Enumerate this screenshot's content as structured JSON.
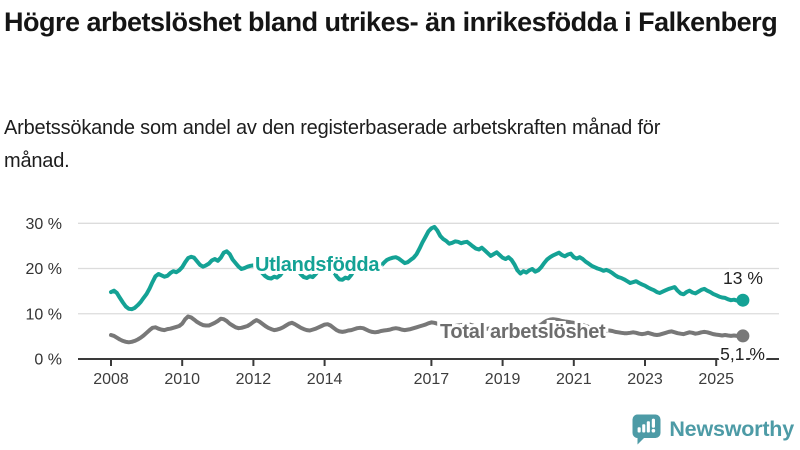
{
  "header": {
    "title": "Högre arbetslöshet bland utrikes- än inrikesfödda i Falkenberg",
    "subtitle": "Arbetssökande som andel av den registerbaserade arbetskraften månad för månad."
  },
  "chart_data": {
    "type": "line",
    "x_unit": "year (monthly data)",
    "x_start": 2008.0,
    "x_step": 0.0833333,
    "x_ticks": [
      2008,
      2010,
      2012,
      2014,
      2017,
      2019,
      2021,
      2023,
      2025
    ],
    "y_ticks": [
      0,
      10,
      20,
      30
    ],
    "y_tick_suffix": " %",
    "ylim": [
      0,
      30
    ],
    "xlim": [
      2007.9,
      2026.3
    ],
    "grid": true,
    "axis_color": "#3a3a3a",
    "grid_color": "#dcdcdc",
    "series": [
      {
        "name": "Utlandsfödda",
        "color": "#14a295",
        "end_label": "13 %",
        "end_value": 13.0,
        "values": [
          14.8,
          15.1,
          14.6,
          13.5,
          12.5,
          11.6,
          11.1,
          11.0,
          11.3,
          11.9,
          12.6,
          13.5,
          14.4,
          15.6,
          17.0,
          18.3,
          18.8,
          18.5,
          18.2,
          18.4,
          19.0,
          19.4,
          19.2,
          19.6,
          20.3,
          21.4,
          22.3,
          22.6,
          22.4,
          21.6,
          20.8,
          20.4,
          20.7,
          21.1,
          21.8,
          22.1,
          21.7,
          22.4,
          23.5,
          23.8,
          23.2,
          22.0,
          21.2,
          20.4,
          19.9,
          20.1,
          20.4,
          20.6,
          20.7,
          20.4,
          19.9,
          19.0,
          18.3,
          17.9,
          17.8,
          18.2,
          18.0,
          18.5,
          19.4,
          20.2,
          20.8,
          21.0,
          20.5,
          19.6,
          18.7,
          18.1,
          17.9,
          18.3,
          18.1,
          18.8,
          19.6,
          20.4,
          21.0,
          21.3,
          20.6,
          19.4,
          18.3,
          17.6,
          17.5,
          18.0,
          17.8,
          18.6,
          19.7,
          20.6,
          21.4,
          21.6,
          21.1,
          20.3,
          19.7,
          19.4,
          19.8,
          20.6,
          21.3,
          21.9,
          22.2,
          22.4,
          22.5,
          22.2,
          21.7,
          21.2,
          21.4,
          21.9,
          22.4,
          23.2,
          24.4,
          25.8,
          27.0,
          28.2,
          28.9,
          29.2,
          28.4,
          27.2,
          26.5,
          26.1,
          25.5,
          25.7,
          26.0,
          25.9,
          25.6,
          25.8,
          25.9,
          25.4,
          24.9,
          24.4,
          24.2,
          24.6,
          24.0,
          23.4,
          22.8,
          23.2,
          23.6,
          23.0,
          22.4,
          22.1,
          22.5,
          21.9,
          20.9,
          19.6,
          18.9,
          19.4,
          19.1,
          19.6,
          19.9,
          19.3,
          19.6,
          20.3,
          21.2,
          22.0,
          22.5,
          22.9,
          23.2,
          23.5,
          23.0,
          22.7,
          23.1,
          23.3,
          22.5,
          22.2,
          22.5,
          22.1,
          21.5,
          21.1,
          20.6,
          20.3,
          20.0,
          19.8,
          19.5,
          19.7,
          19.4,
          19.0,
          18.5,
          18.1,
          17.9,
          17.6,
          17.2,
          16.8,
          17.0,
          17.2,
          16.8,
          16.5,
          16.2,
          15.8,
          15.5,
          15.2,
          14.8,
          14.6,
          14.9,
          15.2,
          15.5,
          15.7,
          15.9,
          15.1,
          14.5,
          14.3,
          14.8,
          15.1,
          14.7,
          14.5,
          14.9,
          15.3,
          15.5,
          15.1,
          14.8,
          14.4,
          14.1,
          13.8,
          13.6,
          13.5,
          13.2,
          13.0,
          13.1,
          12.9,
          12.8,
          13.0
        ]
      },
      {
        "name": "Total arbetslöshet",
        "color": "#787878",
        "label_color": "#6d6d6d",
        "end_label": "5,1 %",
        "end_value": 5.1,
        "values": [
          5.3,
          5.1,
          4.7,
          4.3,
          4.0,
          3.8,
          3.7,
          3.8,
          4.0,
          4.3,
          4.7,
          5.2,
          5.8,
          6.4,
          6.9,
          7.0,
          6.7,
          6.5,
          6.4,
          6.6,
          6.7,
          6.9,
          7.1,
          7.3,
          7.8,
          8.8,
          9.4,
          9.2,
          8.7,
          8.2,
          7.8,
          7.5,
          7.4,
          7.4,
          7.7,
          8.0,
          8.4,
          8.9,
          8.8,
          8.4,
          7.8,
          7.4,
          7.0,
          6.8,
          6.9,
          7.1,
          7.3,
          7.7,
          8.2,
          8.6,
          8.3,
          7.8,
          7.3,
          6.9,
          6.6,
          6.4,
          6.5,
          6.7,
          7.0,
          7.4,
          7.8,
          8.0,
          7.7,
          7.3,
          6.9,
          6.6,
          6.4,
          6.3,
          6.5,
          6.7,
          7.0,
          7.3,
          7.6,
          7.7,
          7.4,
          6.9,
          6.4,
          6.1,
          6.0,
          6.1,
          6.3,
          6.4,
          6.6,
          6.8,
          6.9,
          6.8,
          6.5,
          6.2,
          6.0,
          5.9,
          6.0,
          6.2,
          6.3,
          6.4,
          6.5,
          6.7,
          6.8,
          6.7,
          6.5,
          6.4,
          6.5,
          6.6,
          6.8,
          7.0,
          7.2,
          7.4,
          7.6,
          7.9,
          8.1,
          8.0,
          7.8,
          7.5,
          7.3,
          7.2,
          7.1,
          7.2,
          7.3,
          7.4,
          7.5,
          7.6,
          7.7,
          7.6,
          7.4,
          7.1,
          6.9,
          6.7,
          6.6,
          6.7,
          6.8,
          6.9,
          7.0,
          7.1,
          7.2,
          7.1,
          6.9,
          6.7,
          6.6,
          6.5,
          6.5,
          6.6,
          6.7,
          6.8,
          6.9,
          7.0,
          7.2,
          7.6,
          8.1,
          8.5,
          8.7,
          8.8,
          8.7,
          8.6,
          8.4,
          8.3,
          8.2,
          8.1,
          8.0,
          7.9,
          7.7,
          7.5,
          7.3,
          7.1,
          6.9,
          6.7,
          6.6,
          6.5,
          6.4,
          6.3,
          6.3,
          6.2,
          6.0,
          5.9,
          5.8,
          5.7,
          5.7,
          5.8,
          5.9,
          5.8,
          5.6,
          5.5,
          5.6,
          5.8,
          5.6,
          5.4,
          5.3,
          5.4,
          5.6,
          5.8,
          6.0,
          6.1,
          5.9,
          5.7,
          5.6,
          5.5,
          5.7,
          5.9,
          5.8,
          5.6,
          5.7,
          5.9,
          6.0,
          5.9,
          5.7,
          5.5,
          5.4,
          5.3,
          5.2,
          5.3,
          5.2,
          5.1,
          5.2,
          5.1,
          5.1,
          5.1
        ]
      }
    ]
  },
  "footer": {
    "brand": "Newsworthy",
    "brand_color": "#4d9ba6",
    "logo_icon": "bar-chart-speech-bubble"
  }
}
